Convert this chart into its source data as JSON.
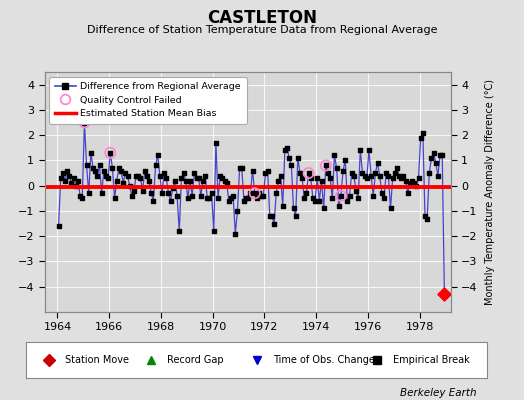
{
  "title": "CASTLETON",
  "subtitle": "Difference of Station Temperature Data from Regional Average",
  "ylabel_right": "Monthly Temperature Anomaly Difference (°C)",
  "xlim": [
    1963.5,
    1979.2
  ],
  "ylim": [
    -5,
    4.5
  ],
  "yticks": [
    -4,
    -3,
    -2,
    -1,
    0,
    1,
    2,
    3,
    4
  ],
  "xticks": [
    1964,
    1966,
    1968,
    1970,
    1972,
    1974,
    1976,
    1978
  ],
  "bias_line": -0.05,
  "bg_color": "#e0e0e0",
  "plot_bg_color": "#d8d8d8",
  "line_color": "#4444cc",
  "dot_color": "#000000",
  "bias_color": "#ff0000",
  "qc_color": "#ff88cc",
  "footer": "Berkeley Earth",
  "time_series": [
    1964.042,
    1964.125,
    1964.208,
    1964.292,
    1964.375,
    1964.458,
    1964.542,
    1964.625,
    1964.708,
    1964.792,
    1964.875,
    1964.958,
    1965.042,
    1965.125,
    1965.208,
    1965.292,
    1965.375,
    1965.458,
    1965.542,
    1965.625,
    1965.708,
    1965.792,
    1965.875,
    1965.958,
    1966.042,
    1966.125,
    1966.208,
    1966.292,
    1966.375,
    1966.458,
    1966.542,
    1966.625,
    1966.708,
    1966.792,
    1966.875,
    1966.958,
    1967.042,
    1967.125,
    1967.208,
    1967.292,
    1967.375,
    1967.458,
    1967.542,
    1967.625,
    1967.708,
    1967.792,
    1967.875,
    1967.958,
    1968.042,
    1968.125,
    1968.208,
    1968.292,
    1968.375,
    1968.458,
    1968.542,
    1968.625,
    1968.708,
    1968.792,
    1968.875,
    1968.958,
    1969.042,
    1969.125,
    1969.208,
    1969.292,
    1969.375,
    1969.458,
    1969.542,
    1969.625,
    1969.708,
    1969.792,
    1969.875,
    1969.958,
    1970.042,
    1970.125,
    1970.208,
    1970.292,
    1970.375,
    1970.458,
    1970.542,
    1970.625,
    1970.708,
    1970.792,
    1970.875,
    1970.958,
    1971.042,
    1971.125,
    1971.208,
    1971.292,
    1971.375,
    1971.458,
    1971.542,
    1971.625,
    1971.708,
    1971.792,
    1971.875,
    1971.958,
    1972.042,
    1972.125,
    1972.208,
    1972.292,
    1972.375,
    1972.458,
    1972.542,
    1972.625,
    1972.708,
    1972.792,
    1972.875,
    1972.958,
    1973.042,
    1973.125,
    1973.208,
    1973.292,
    1973.375,
    1973.458,
    1973.542,
    1973.625,
    1973.708,
    1973.792,
    1973.875,
    1973.958,
    1974.042,
    1974.125,
    1974.208,
    1974.292,
    1974.375,
    1974.458,
    1974.542,
    1974.625,
    1974.708,
    1974.792,
    1974.875,
    1974.958,
    1975.042,
    1975.125,
    1975.208,
    1975.292,
    1975.375,
    1975.458,
    1975.542,
    1975.625,
    1975.708,
    1975.792,
    1975.875,
    1975.958,
    1976.042,
    1976.125,
    1976.208,
    1976.292,
    1976.375,
    1976.458,
    1976.542,
    1976.625,
    1976.708,
    1976.792,
    1976.875,
    1976.958,
    1977.042,
    1977.125,
    1977.208,
    1977.292,
    1977.375,
    1977.458,
    1977.542,
    1977.625,
    1977.708,
    1977.792,
    1977.875,
    1977.958,
    1978.042,
    1978.125,
    1978.208,
    1978.292,
    1978.375,
    1978.458,
    1978.542,
    1978.625,
    1978.708,
    1978.792,
    1978.875,
    1978.958
  ],
  "values": [
    -1.6,
    0.3,
    0.5,
    0.2,
    0.6,
    0.4,
    0.1,
    0.3,
    0.0,
    0.2,
    -0.4,
    -0.5,
    2.5,
    0.8,
    -0.3,
    1.3,
    0.7,
    0.6,
    0.4,
    0.8,
    -0.3,
    0.6,
    0.4,
    0.3,
    1.3,
    0.7,
    -0.5,
    0.2,
    0.7,
    0.6,
    0.1,
    0.5,
    0.4,
    0.0,
    -0.4,
    -0.2,
    0.4,
    0.4,
    0.3,
    -0.2,
    0.6,
    0.4,
    0.2,
    -0.3,
    -0.6,
    0.8,
    1.2,
    0.4,
    -0.3,
    0.5,
    0.3,
    -0.3,
    -0.6,
    -0.1,
    0.2,
    -0.4,
    -1.8,
    0.3,
    0.5,
    0.2,
    -0.5,
    0.2,
    -0.4,
    0.5,
    0.3,
    0.3,
    -0.4,
    0.2,
    0.4,
    -0.5,
    -0.5,
    -0.3,
    -1.8,
    1.7,
    -0.5,
    0.4,
    0.3,
    0.2,
    0.1,
    -0.6,
    -0.5,
    -0.4,
    -1.9,
    -1.0,
    0.7,
    0.7,
    -0.6,
    -0.5,
    -0.5,
    -0.3,
    0.6,
    -0.3,
    -0.5,
    -0.3,
    -0.4,
    -0.4,
    0.5,
    0.6,
    -1.2,
    -1.2,
    -1.5,
    -0.3,
    0.2,
    0.4,
    -0.8,
    1.4,
    1.5,
    1.1,
    0.8,
    -0.9,
    -1.2,
    1.1,
    0.5,
    0.3,
    -0.5,
    -0.3,
    0.5,
    0.3,
    -0.5,
    -0.6,
    0.3,
    -0.6,
    0.2,
    -0.9,
    0.8,
    0.5,
    0.3,
    -0.5,
    1.2,
    0.7,
    -0.8,
    -0.4,
    0.6,
    1.0,
    -0.6,
    -0.4,
    0.5,
    0.4,
    -0.2,
    -0.5,
    1.4,
    0.5,
    0.4,
    0.3,
    1.4,
    0.4,
    -0.4,
    0.5,
    0.9,
    0.4,
    -0.3,
    -0.5,
    0.5,
    0.4,
    -0.9,
    0.3,
    0.5,
    0.7,
    0.4,
    0.3,
    0.4,
    0.2,
    -0.3,
    0.1,
    0.2,
    0.1,
    0.0,
    0.3,
    1.9,
    2.1,
    -1.2,
    -1.3,
    0.5,
    1.1,
    1.3,
    0.9,
    0.4,
    1.2,
    1.2,
    -4.3
  ],
  "qc_failed_indices": [
    12,
    24,
    91,
    116,
    124,
    131
  ],
  "station_move_index": 179,
  "legend_labels": [
    "Difference from Regional Average",
    "Quality Control Failed",
    "Estimated Station Mean Bias"
  ],
  "bottom_labels": [
    "Station Move",
    "Record Gap",
    "Time of Obs. Change",
    "Empirical Break"
  ],
  "bottom_colors": [
    "#cc0000",
    "#008800",
    "#0000cc",
    "#000000"
  ],
  "bottom_markers": [
    "D",
    "^",
    "v",
    "s"
  ]
}
